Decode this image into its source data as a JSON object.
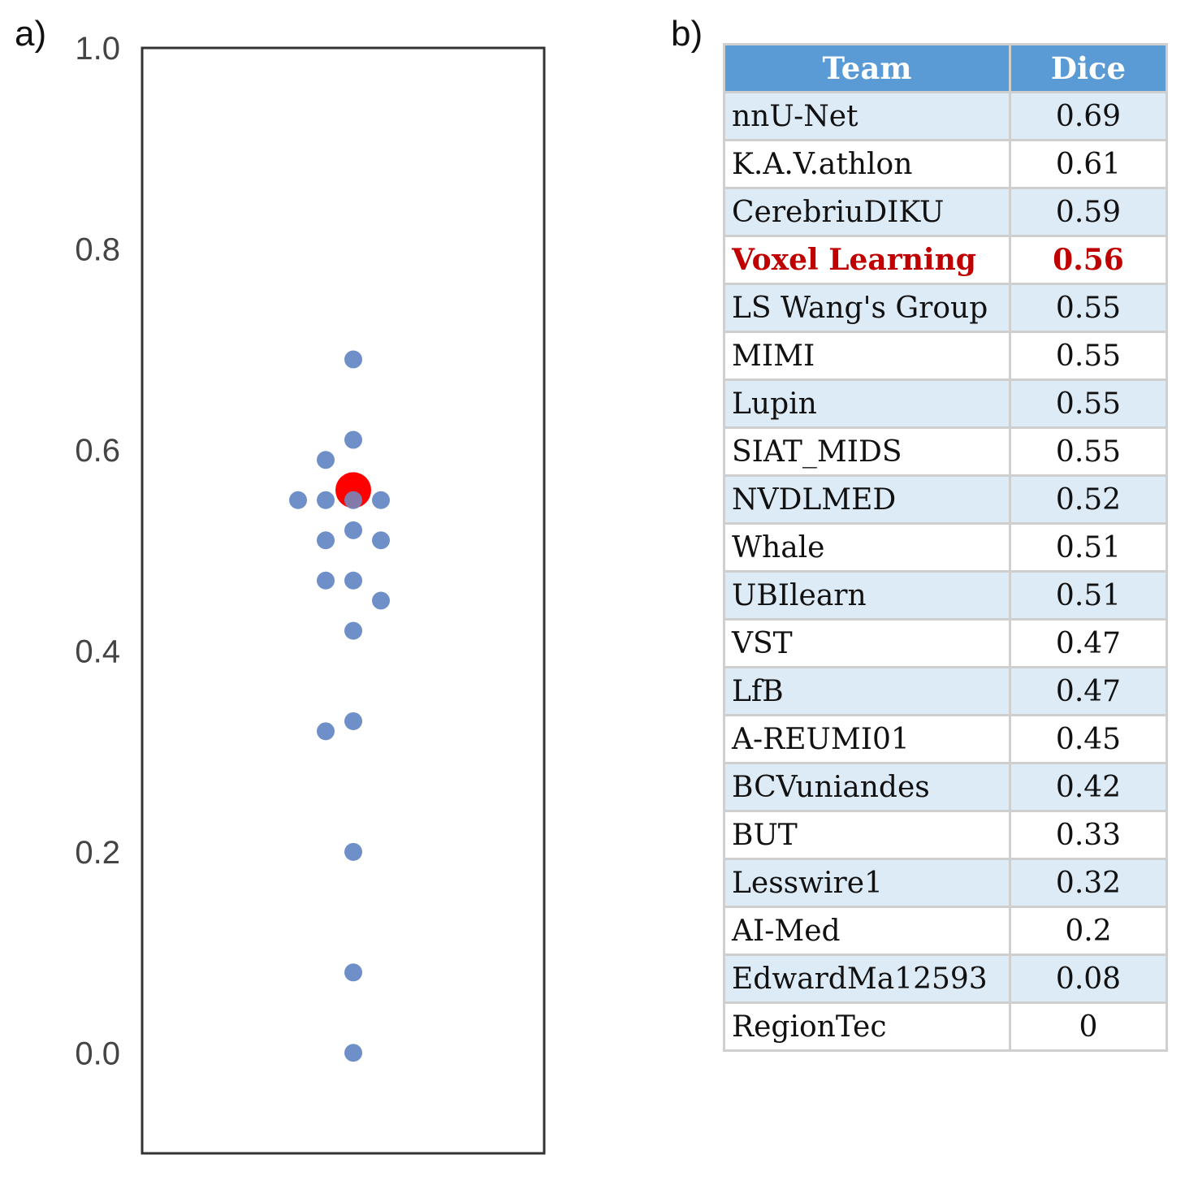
{
  "panels": {
    "a_label": "a)",
    "b_label": "b)"
  },
  "chart_data": [
    {
      "type": "scatter",
      "title": "",
      "xlabel": "",
      "ylabel": "",
      "ylim": [
        -0.1,
        1.0
      ],
      "yticks": [
        "0.0",
        "0.2",
        "0.4",
        "0.6",
        "0.8",
        "1.0"
      ],
      "ytick_values": [
        0.0,
        0.2,
        0.4,
        0.6,
        0.8,
        1.0
      ],
      "grid": false,
      "point_color": "#6f8fc8",
      "highlight_color": "#ff0000",
      "series": [
        {
          "values": [
            0.69,
            0.61,
            0.59,
            0.55,
            0.55,
            0.55,
            0.55,
            0.52,
            0.51,
            0.51,
            0.47,
            0.47,
            0.45,
            0.42,
            0.33,
            0.32,
            0.2,
            0.08,
            0.0
          ]
        },
        {
          "values": [
            0.56
          ]
        }
      ]
    },
    {
      "type": "table",
      "columns": [
        "Team",
        "Dice"
      ],
      "header_color": "#5b9bd5",
      "stripe_color": "#ddebf7",
      "highlight_text_color": "#c00000",
      "highlight_row": "Voxel Learning",
      "rows": [
        [
          "nnU-Net",
          "0.69"
        ],
        [
          "K.A.V.athlon",
          "0.61"
        ],
        [
          "CerebriuDIKU",
          "0.59"
        ],
        [
          "Voxel Learning",
          "0.56"
        ],
        [
          "LS Wang's Group",
          "0.55"
        ],
        [
          "MIMI",
          "0.55"
        ],
        [
          "Lupin",
          "0.55"
        ],
        [
          "SIAT_MIDS",
          "0.55"
        ],
        [
          "NVDLMED",
          "0.52"
        ],
        [
          "Whale",
          "0.51"
        ],
        [
          "UBIlearn",
          "0.51"
        ],
        [
          "VST",
          "0.47"
        ],
        [
          "LfB",
          "0.47"
        ],
        [
          "A-REUMI01",
          "0.45"
        ],
        [
          "BCVuniandes",
          "0.42"
        ],
        [
          "BUT",
          "0.33"
        ],
        [
          "Lesswire1",
          "0.32"
        ],
        [
          "AI-Med",
          "0.2"
        ],
        [
          "EdwardMa12593",
          "0.08"
        ],
        [
          "RegionTec",
          "0"
        ]
      ]
    }
  ]
}
